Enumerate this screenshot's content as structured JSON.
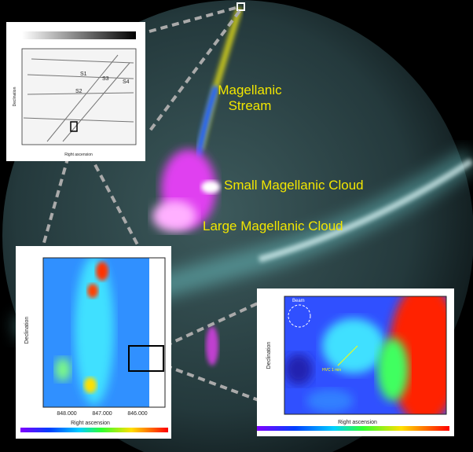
{
  "labels": {
    "stream": "Magellanic Stream",
    "smc": "Small Magellanic Cloud",
    "lmc": "Large Magellanic Cloud"
  },
  "inset_1": {
    "regions": [
      "S1",
      "S2",
      "S3",
      "S4"
    ],
    "y_label": "Declination",
    "x_label": "Right ascension"
  },
  "inset_2": {
    "y_label": "Declination",
    "x_label": "Right ascension",
    "x_ticks": [
      "848.000",
      "847.000",
      "846.000"
    ]
  },
  "inset_3": {
    "y_label": "Declination",
    "x_label": "Right ascension",
    "beam": "Beam",
    "marker": "HVC 1 min"
  }
}
